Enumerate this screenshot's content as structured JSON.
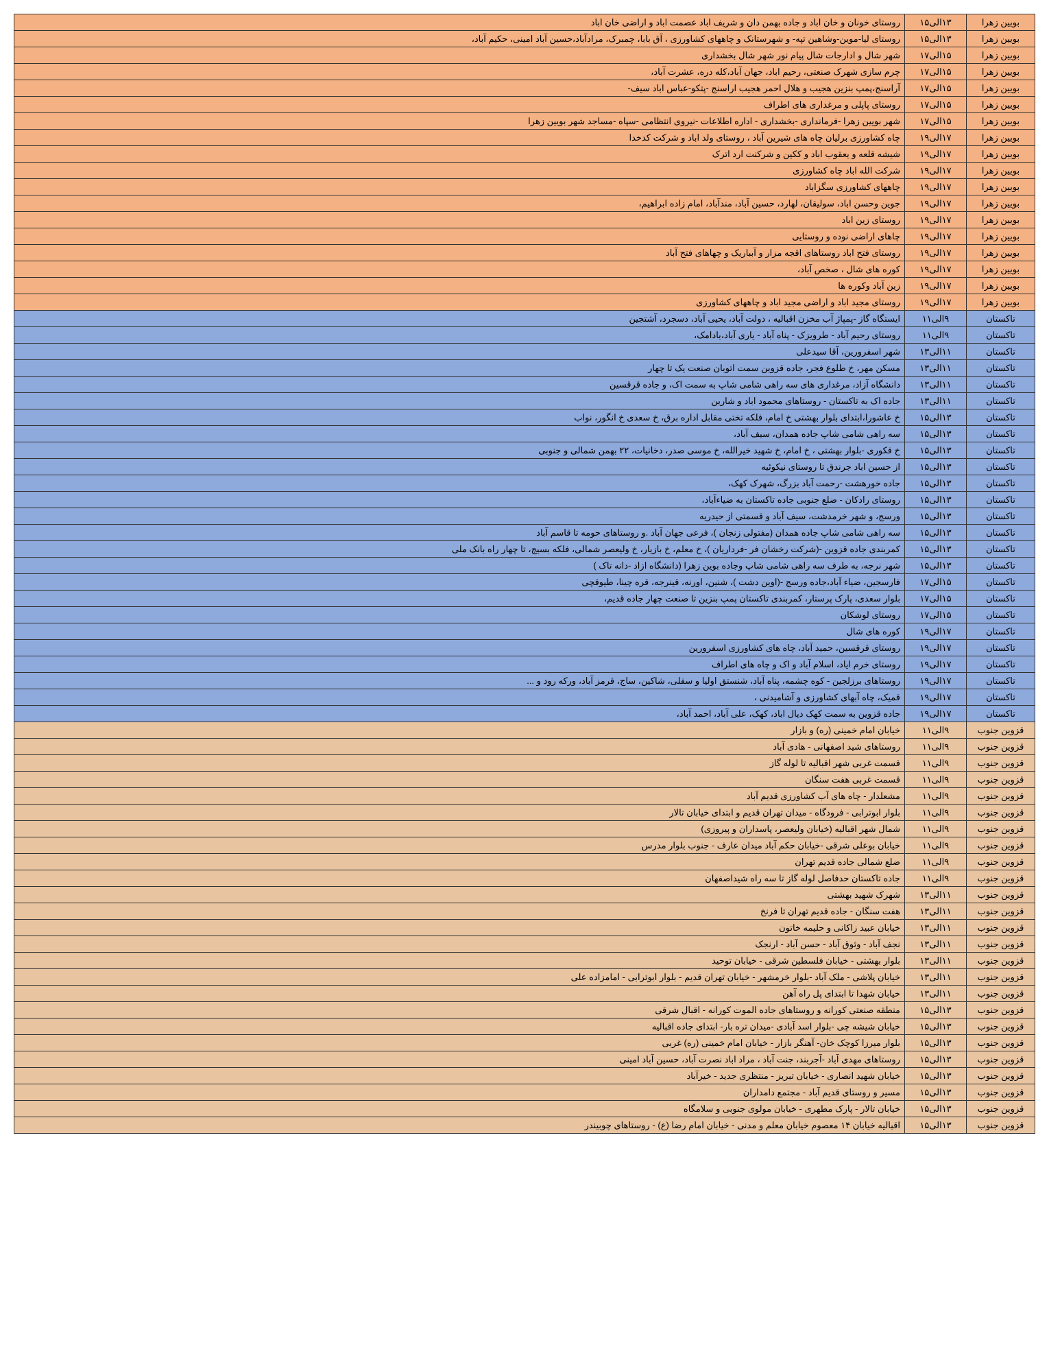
{
  "colors": {
    "orange": "#f4b183",
    "blue": "#8ea9db",
    "tan": "#e8c4a0",
    "border": "#333333"
  },
  "rows": [
    {
      "region": "بویین زهرا",
      "time": "۱۳الی۱۵",
      "location": "روستای خونان و خان اباد و جاده بهمن دان و شریف اباد عصمت اباد و اراضی خان اباد",
      "bg": "orange"
    },
    {
      "region": "بویین زهرا",
      "time": "۱۳الی۱۵",
      "location": "روستای لیا-موین-وشاهین تپه- و شهرستانک و چاههای کشاورزی ، آق بابا، چمبرک، مرادآباد،حسین آباد امینی، حکیم آباد،",
      "bg": "orange"
    },
    {
      "region": "بویین زهرا",
      "time": "۱۵الی۱۷",
      "location": "شهر شال و ادارجات شال پیام نور شهر شال بخشداری",
      "bg": "orange"
    },
    {
      "region": "بویین زهرا",
      "time": "۱۵الی۱۷",
      "location": "چرم سازی شهرک صنعتی، رحیم اباد، جهان آباد،کله دره، عشرت آباد،",
      "bg": "orange"
    },
    {
      "region": "بویین زهرا",
      "time": "۱۵الی۱۷",
      "location": "آراسنج،پمپ بنزین هجیب و هلال احمر هجیب اراسنج -پتکو-عباس اباد سیف-",
      "bg": "orange"
    },
    {
      "region": "بویین زهرا",
      "time": "۱۵الی۱۷",
      "location": "روستای پاپلی و مرغداری های اطراف",
      "bg": "orange"
    },
    {
      "region": "بویین زهرا",
      "time": "۱۵الی۱۷",
      "location": "شهر بویین زهرا -فرمانداری -بخشداری -  اداره اطلاعات -نیروی انتظامی -سپاه -مساجد شهر بویین زهرا",
      "bg": "orange"
    },
    {
      "region": "بویین زهرا",
      "time": "۱۷الی۱۹",
      "location": "چاه کشاورزی برلیان چاه های شیرین آباد ،  روستای ولد اباد و شرکت کدخدا",
      "bg": "orange"
    },
    {
      "region": "بویین زهرا",
      "time": "۱۷الی۱۹",
      "location": "شیشه قلعه و یعقوب اباد و ککین و شرکنت ارد اترک",
      "bg": "orange"
    },
    {
      "region": "بویین زهرا",
      "time": "۱۷الی۱۹",
      "location": "شرکت الله اباد چاه کشاورزی",
      "bg": "orange"
    },
    {
      "region": "بویین زهرا",
      "time": "۱۷الی۱۹",
      "location": "چاههای کشاورزی سگزاباد",
      "bg": "orange"
    },
    {
      "region": "بویین زهرا",
      "time": "۱۷الی۱۹",
      "location": "جوین وحسن اباد، سولیقان، لهارد، حسین آباد، مندآباد، امام زاده ابراهیم،",
      "bg": "orange"
    },
    {
      "region": "بویین زهرا",
      "time": "۱۷الی۱۹",
      "location": "روستای زین اباد",
      "bg": "orange"
    },
    {
      "region": "بویین زهرا",
      "time": "۱۷الی۱۹",
      "location": "چاهای اراضی نوده و روستایی",
      "bg": "orange"
    },
    {
      "region": "بویین زهرا",
      "time": "۱۷الی۱۹",
      "location": "روستای فتح اباد روستاهای اقجه مزار و آبباریک و چهاهای فتح آباد",
      "bg": "orange"
    },
    {
      "region": "بویین زهرا",
      "time": "۱۷الی۱۹",
      "location": "کوره های شال ، صخص آباد،",
      "bg": "orange"
    },
    {
      "region": "بویین زهرا",
      "time": "۱۷الی۱۹",
      "location": "زین آباد وکوره ها",
      "bg": "orange"
    },
    {
      "region": "بویین زهرا",
      "time": "۱۷الی۱۹",
      "location": "روستای مجید اباد و اراضی مجید اباد و چاههای کشاورزی",
      "bg": "orange"
    },
    {
      "region": "تاکستان",
      "time": "۹الی۱۱",
      "location": "ایستگاه گاز -پمپاژ آب مخزن اقبالیه ، دولت آباد، یحیی آباد، دسجرد، آشتجین",
      "bg": "blue"
    },
    {
      "region": "تاکستان",
      "time": "۹الی۱۱",
      "location": "روستای رحیم آباد - طرویزک - پناه آباد - یاری آباد،بادامک،",
      "bg": "blue"
    },
    {
      "region": "تاکستان",
      "time": "۱۱الی۱۳",
      "location": "شهر اسفرورین، آقا سیدعلی",
      "bg": "blue"
    },
    {
      "region": "تاکستان",
      "time": "۱۱الی۱۳",
      "location": "مسکن مهر، خ طلوع فجر، جاده قزوین سمت اتوبان صنعت یک تا چهار",
      "bg": "blue"
    },
    {
      "region": "تاکستان",
      "time": "۱۱الی۱۳",
      "location": "دانشگاه آزاد، مرغداری های سه راهی شامی شاپ به سمت اک، و جاده قرقسین",
      "bg": "blue"
    },
    {
      "region": "تاکستان",
      "time": "۱۱الی۱۳",
      "location": "جاده اک به تاکستان - روستاهای محمود اباد و شارین",
      "bg": "blue"
    },
    {
      "region": "تاکستان",
      "time": "۱۳الی۱۵",
      "location": "خ عاشورا،ابتدای بلوار بهشتی خ امام، فلکه تختی مقابل اداره برق،  خ سعدی خ انگور، نواب",
      "bg": "blue"
    },
    {
      "region": "تاکستان",
      "time": "۱۳الی۱۵",
      "location": "سه راهی شامی شاپ جاده همدان، سیف آباد،",
      "bg": "blue"
    },
    {
      "region": "تاکستان",
      "time": "۱۳الی۱۵",
      "location": "خ فکوری -بلوار بهشتی ، خ امام، خ شهید خیرالله، خ موسی صدر، دخانیات، ۲۲ بهمن شمالی و جنوبی",
      "bg": "blue"
    },
    {
      "region": "تاکستان",
      "time": "۱۳الی۱۵",
      "location": "از حسین اباد جرندق تا روستای نیکوئیه",
      "bg": "blue"
    },
    {
      "region": "تاکستان",
      "time": "۱۳الی۱۵",
      "location": "جاده خورهشت -رحمت آباد بزرگ، شهرک کهک،",
      "bg": "blue"
    },
    {
      "region": "تاکستان",
      "time": "۱۳الی۱۵",
      "location": "روستای رادکان - ضلع جنوبی جاده تاکستان به ضیاءآباد،",
      "bg": "blue"
    },
    {
      "region": "تاکستان",
      "time": "۱۳الی۱۵",
      "location": "ورسج، و شهر خرمدشت، سیف آباد و قسمتی از حیدریه",
      "bg": "blue"
    },
    {
      "region": "تاکستان",
      "time": "۱۳الی۱۵",
      "location": "سه راهی شامی شاپ جاده همدان  (مفتولی زنجان )، فرعی جهان آباد  .و روستاهای حومه تا قاسم آباد",
      "bg": "blue"
    },
    {
      "region": "تاکستان",
      "time": "۱۳الی۱۵",
      "location": "کمربندی جاده قزوین -(شرکت رخشان فر -فرداریان )، خ معلم، خ بازیار، خ ولیعصر شمالی، فلکه بسیج، تا چهار راه بانک ملی",
      "bg": "blue"
    },
    {
      "region": "تاکستان",
      "time": "۱۳الی۱۵",
      "location": "شهر نرجه، به طرف سه راهی شامی شاپ وجاده بوین زهرا (دانشگاه ازاد -دانه تاک )",
      "bg": "blue"
    },
    {
      "region": "تاکستان",
      "time": "۱۵الی۱۷",
      "location": "فارسجین، ضیاء آباد،جاده ورسج -(اوین دشت )، شنین، اورنه، قینرجه، قره چینا، طیوقچی",
      "bg": "blue"
    },
    {
      "region": "تاکستان",
      "time": "۱۵الی۱۷",
      "location": "بلوار سعدی، پارک پرستار، کمربندی تاکستان  پمپ بنزین تا صنعت چهار جاده قدیم،",
      "bg": "blue"
    },
    {
      "region": "تاکستان",
      "time": "۱۵الی۱۷",
      "location": "روستای لوشکان",
      "bg": "blue"
    },
    {
      "region": "تاکستان",
      "time": "۱۷الی۱۹",
      "location": "کوره های شال",
      "bg": "blue"
    },
    {
      "region": "تاکستان",
      "time": "۱۷الی۱۹",
      "location": "روستای قرقسین، حمید آباد، چاه های کشاورزی اسفرورین",
      "bg": "blue"
    },
    {
      "region": "تاکستان",
      "time": "۱۷الی۱۹",
      "location": "روستای خرم ایاد، اسلام آباد و اک و چاه های اطراف",
      "bg": "blue"
    },
    {
      "region": "تاکستان",
      "time": "۱۷الی۱۹",
      "location": "روستاهای برزلجین - کوه چشمه، پناه آباد، شنستق اولیا و سفلی، شاکین، ساج، قرمز آباد، ورکه رود و ...",
      "bg": "blue"
    },
    {
      "region": "تاکستان",
      "time": "۱۷الی۱۹",
      "location": "قمیک، چاه آبهای کشاورزی و آشامیدنی ،",
      "bg": "blue"
    },
    {
      "region": "تاکستان",
      "time": "۱۷الی۱۹",
      "location": "جاده قزوین به سمت کهک دیال اباد، کهک، علی آباد، احمد آباد،",
      "bg": "blue"
    },
    {
      "region": "قزوین جنوب",
      "time": "۹الی۱۱",
      "location": "خیابان امام خمینی (ره) و بازار",
      "bg": "tan"
    },
    {
      "region": "قزوین جنوب",
      "time": "۹الی۱۱",
      "location": "روستاهای شید اصفهانی - هادی آباد",
      "bg": "tan"
    },
    {
      "region": "قزوین جنوب",
      "time": "۹الی۱۱",
      "location": "قسمت غربی شهر اقبالیه تا لوله گاز",
      "bg": "tan"
    },
    {
      "region": "قزوین جنوب",
      "time": "۹الی۱۱",
      "location": "قسمت غربی هفت سنگان",
      "bg": "tan"
    },
    {
      "region": "قزوین جنوب",
      "time": "۹الی۱۱",
      "location": "مشعلدار - چاه های آب کشاورزی قدیم آباد",
      "bg": "tan"
    },
    {
      "region": "قزوین جنوب",
      "time": "۹الی۱۱",
      "location": "بلوار ابوترابی - فرودگاه - میدان تهران قدیم و ابتدای خیابان تالار",
      "bg": "tan"
    },
    {
      "region": "قزوین جنوب",
      "time": "۹الی۱۱",
      "location": "شمال شهر اقبالیه (خیابان ولیعصر، پاسداران و پیروزی)",
      "bg": "tan"
    },
    {
      "region": "قزوین جنوب",
      "time": "۹الی۱۱",
      "location": "خیابان بوعلی شرقی -خیابان حکم آباد میدان عارف - جنوب بلوار مدرس",
      "bg": "tan"
    },
    {
      "region": "قزوین جنوب",
      "time": "۹الی۱۱",
      "location": "ضلع شمالی جاده قدیم تهران",
      "bg": "tan"
    },
    {
      "region": "قزوین جنوب",
      "time": "۹الی۱۱",
      "location": "جاده تاکستان حدفاصل لوله گاز تا سه راه شیداصفهان",
      "bg": "tan"
    },
    {
      "region": "قزوین جنوب",
      "time": "۱۱الی۱۳",
      "location": "شهرک شهید بهشتی",
      "bg": "tan"
    },
    {
      "region": "قزوین جنوب",
      "time": "۱۱الی۱۳",
      "location": "هفت سنگان - جاده قدیم تهران تا فرنخ",
      "bg": "tan"
    },
    {
      "region": "قزوین جنوب",
      "time": "۱۱الی۱۳",
      "location": "خیابان عبید زاکانی و حلیمه خاتون",
      "bg": "tan"
    },
    {
      "region": "قزوین جنوب",
      "time": "۱۱الی۱۳",
      "location": "نجف آباد - وثوق آباد - حسن آباد - ارنجک",
      "bg": "tan"
    },
    {
      "region": "قزوین جنوب",
      "time": "۱۱الی۱۳",
      "location": "بلوار بهشتی - خیابان فلسطین شرقی - خیابان توحید",
      "bg": "tan"
    },
    {
      "region": "قزوین جنوب",
      "time": "۱۱الی۱۳",
      "location": "خیابان پلاشی - ملک آباد -بلوار خرمشهر - خیابان تهران قدیم - بلوار ابوترابی - امامزاده علی",
      "bg": "tan"
    },
    {
      "region": "قزوین جنوب",
      "time": "۱۱الی۱۳",
      "location": "خیابان شهدا تا ابتدای پل راه آهن",
      "bg": "tan"
    },
    {
      "region": "قزوین جنوب",
      "time": "۱۳الی۱۵",
      "location": "منطقه صنعتی کورانه و روستاهای جاده الموت کورانه - اقبال شرقی",
      "bg": "tan"
    },
    {
      "region": "قزوین جنوب",
      "time": "۱۳الی۱۵",
      "location": "خیابان شیشه چی -بلوار اسد آبادی -میدان تره بار-  ابتدای جاده اقبالیه",
      "bg": "tan"
    },
    {
      "region": "قزوین جنوب",
      "time": "۱۳الی۱۵",
      "location": "بلوار میرزا کوچک خان- آهنگر بازار - خیابان امام خمینی (ره) غربی",
      "bg": "tan"
    },
    {
      "region": "قزوین جنوب",
      "time": "۱۳الی۱۵",
      "location": "روستاهای مهدی آباد -آجربند، جنت آباد ، مراد اباد نصرت آباد، حسین آباد امینی",
      "bg": "tan"
    },
    {
      "region": "قزوین جنوب",
      "time": "۱۳الی۱۵",
      "location": "خیابان شهید انصاری - خیابان تبریز - منتظری جدید - خیرآباد",
      "bg": "tan"
    },
    {
      "region": "قزوین جنوب",
      "time": "۱۳الی۱۵",
      "location": "مسیر و روستای قدیم آباد - مجتمع دامداران",
      "bg": "tan"
    },
    {
      "region": "قزوین جنوب",
      "time": "۱۳الی۱۵",
      "location": "خیابان تالار - پارک مطهری - خیابان مولوی جنوبی و سلامگاه",
      "bg": "tan"
    },
    {
      "region": "قزوین جنوب",
      "time": "۱۳الی۱۵",
      "location": "اقبالیه خیابان ۱۴ معصوم خیابان معلم و مدنی  - خیابان امام رضا (ع) - روستاهای چوبیندر",
      "bg": "tan"
    }
  ]
}
